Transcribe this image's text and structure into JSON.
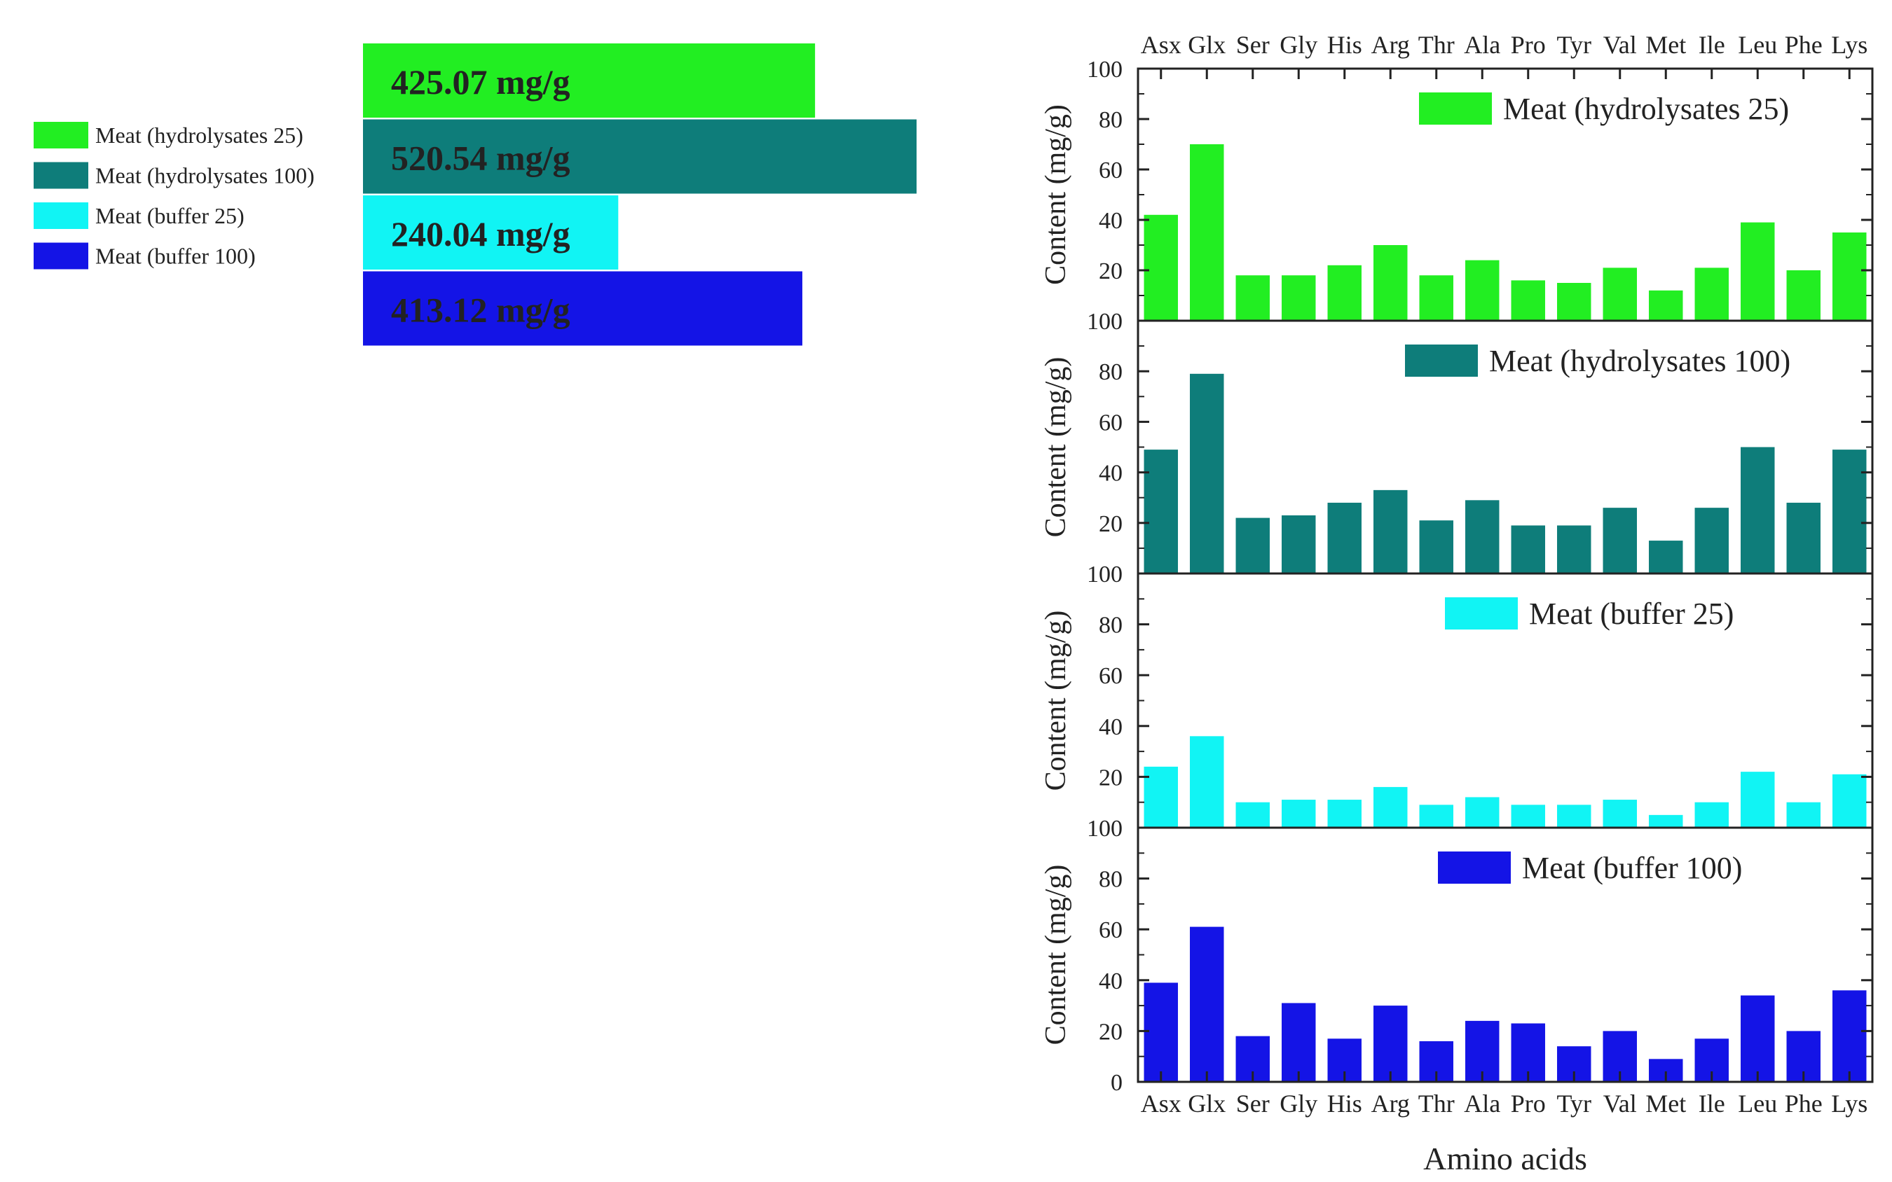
{
  "chart_data": [
    {
      "type": "bar",
      "orientation": "horizontal",
      "title": "",
      "legend": [
        {
          "label": "Meat (hydrolysates 25)",
          "color": "#22ee22"
        },
        {
          "label": "Meat (hydrolysates 100)",
          "color": "#0e7d7a"
        },
        {
          "label": "Meat (buffer 25)",
          "color": "#11f4f4"
        },
        {
          "label": "Meat (buffer 100)",
          "color": "#1414e6"
        }
      ],
      "categories": [
        "Meat (hydrolysates 25)",
        "Meat (hydrolysates 100)",
        "Meat (buffer 25)",
        "Meat (buffer 100)"
      ],
      "values": [
        425.07,
        520.54,
        240.04,
        413.12
      ],
      "labels": [
        "425.07 mg/g",
        "520.54 mg/g",
        "240.04 mg/g",
        "413.12 mg/g"
      ],
      "xlim": [
        0,
        520.54
      ]
    },
    {
      "type": "bar",
      "title": "",
      "xlabel": "Amino acids",
      "ylabel": "Content (mg/g)",
      "ylim": [
        0,
        100
      ],
      "yticks": [
        "0",
        "20",
        "40",
        "60",
        "80",
        "100"
      ],
      "categories": [
        "Asx",
        "Glx",
        "Ser",
        "Gly",
        "His",
        "Arg",
        "Thr",
        "Ala",
        "Pro",
        "Tyr",
        "Val",
        "Met",
        "Ile",
        "Leu",
        "Phe",
        "Lys"
      ],
      "series": [
        {
          "name": "Meat (hydrolysates 25)",
          "color": "#22ee22",
          "values": [
            42,
            70,
            18,
            18,
            22,
            30,
            18,
            24,
            16,
            15,
            21,
            12,
            21,
            39,
            20,
            35
          ]
        },
        {
          "name": "Meat (hydrolysates 100)",
          "color": "#0e7d7a",
          "values": [
            49,
            79,
            22,
            23,
            28,
            33,
            21,
            29,
            19,
            19,
            26,
            13,
            26,
            50,
            28,
            49
          ]
        },
        {
          "name": "Meat (buffer 25)",
          "color": "#11f4f4",
          "values": [
            24,
            36,
            10,
            11,
            11,
            16,
            9,
            12,
            9,
            9,
            11,
            5,
            10,
            22,
            10,
            21
          ]
        },
        {
          "name": "Meat (buffer 100)",
          "color": "#1414e6",
          "values": [
            39,
            61,
            18,
            31,
            17,
            30,
            16,
            24,
            23,
            14,
            20,
            9,
            17,
            34,
            20,
            36
          ]
        }
      ]
    }
  ]
}
